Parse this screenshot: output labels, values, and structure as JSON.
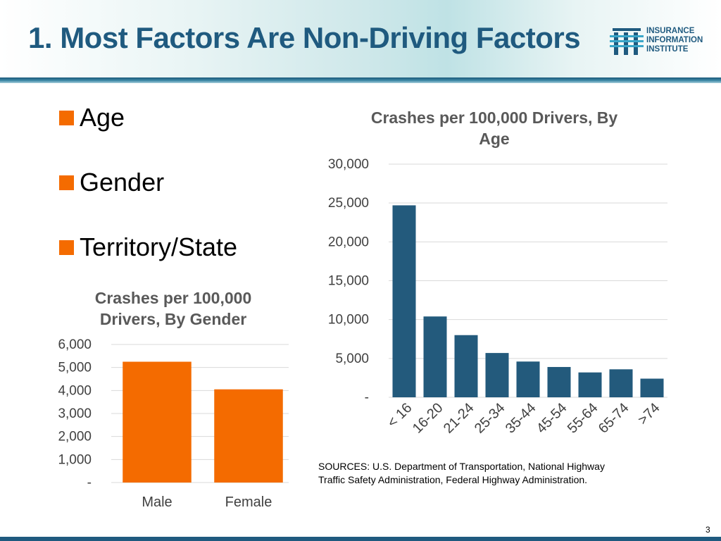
{
  "slide": {
    "title": "1. Most Factors Are Non-Driving Factors",
    "page_number": "3",
    "logo_lines": [
      "INSURANCE",
      "INFORMATION",
      "INSTITUTE"
    ],
    "bullets": [
      "Age",
      "Gender",
      "Territory/State"
    ],
    "sources_line1": "SOURCES: U.S. Department of Transportation, National Highway",
    "sources_line2": "Traffic Safety Administration, Federal Highway Administration.",
    "colors": {
      "title": "#1f5a7f",
      "bullet": "#f46b00",
      "age_bars": "#235a7c",
      "gender_bars": "#f46b00"
    }
  },
  "chart_data": [
    {
      "type": "bar",
      "title_lines": [
        "Crashes per 100,000 Drivers, By",
        "Age"
      ],
      "categories": [
        "< 16",
        "16-20",
        "21-24",
        "25-34",
        "35-44",
        "45-54",
        "55-64",
        "65-74",
        ">74"
      ],
      "values": [
        24700,
        10400,
        8000,
        5700,
        4600,
        3900,
        3200,
        3600,
        2400
      ],
      "ylim": [
        0,
        30000
      ],
      "yticks": [
        0,
        5000,
        10000,
        15000,
        20000,
        25000,
        30000
      ],
      "ytick_labels": [
        "-",
        "5,000",
        "10,000",
        "15,000",
        "20,000",
        "25,000",
        "30,000"
      ],
      "grid": true,
      "color": "#235a7c"
    },
    {
      "type": "bar",
      "title_lines": [
        "Crashes per 100,000",
        "Drivers, By Gender"
      ],
      "categories": [
        "Male",
        "Female"
      ],
      "values": [
        5250,
        4050
      ],
      "ylim": [
        0,
        6000
      ],
      "yticks": [
        0,
        1000,
        2000,
        3000,
        4000,
        5000,
        6000
      ],
      "ytick_labels": [
        "-",
        "1,000",
        "2,000",
        "3,000",
        "4,000",
        "5,000",
        "6,000"
      ],
      "grid": true,
      "color": "#f46b00"
    }
  ]
}
